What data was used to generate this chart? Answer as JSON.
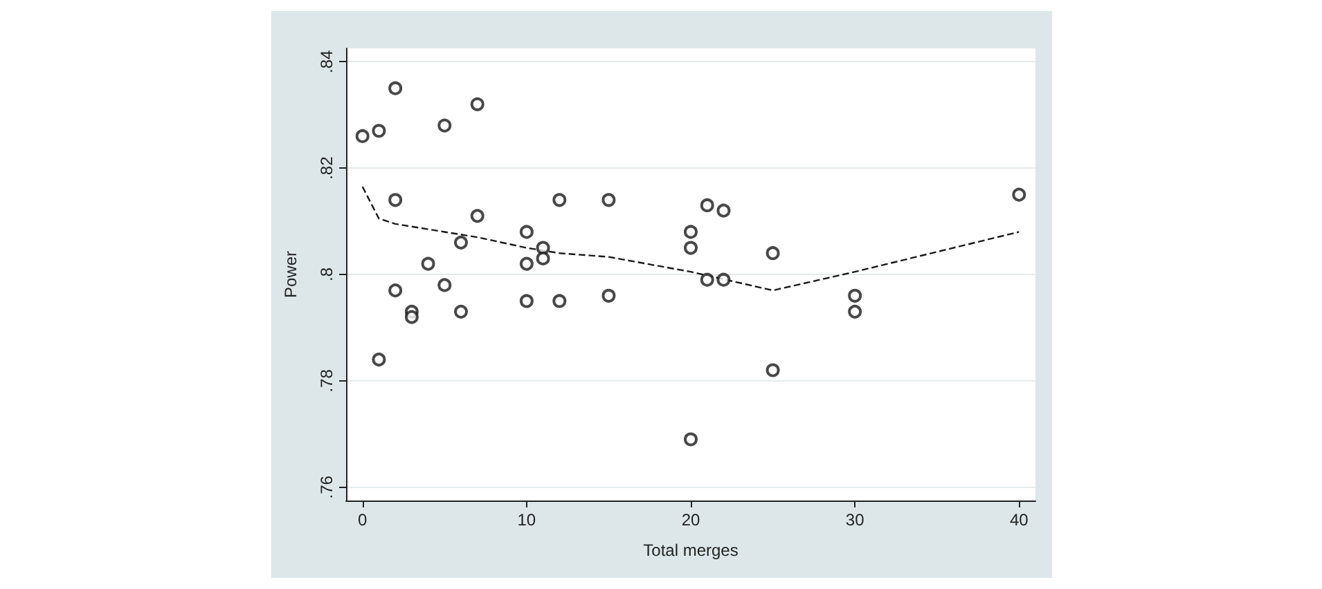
{
  "chart_data": {
    "type": "scatter",
    "xlabel": "Total merges",
    "ylabel": "Power",
    "xlim": [
      -1,
      41
    ],
    "xticks": [
      0,
      10,
      20,
      30,
      40
    ],
    "ylim": [
      0.7575,
      0.8425
    ],
    "yticks": [
      {
        "value": 0.76,
        "label": ".76"
      },
      {
        "value": 0.78,
        "label": ".78"
      },
      {
        "value": 0.8,
        "label": ".8"
      },
      {
        "value": 0.82,
        "label": ".82"
      },
      {
        "value": 0.84,
        "label": ".84"
      }
    ],
    "grid": "y",
    "series": [
      {
        "color": "#1a1a1a",
        "marker": "circle",
        "x": [
          0,
          1,
          1,
          2,
          2,
          2,
          3,
          3,
          4,
          5,
          5,
          6,
          6,
          7,
          7,
          10,
          10,
          10,
          11,
          11,
          12,
          12,
          15,
          15,
          20,
          20,
          20,
          21,
          21,
          22,
          22,
          25,
          25,
          30,
          30,
          40
        ],
        "values": [
          0.826,
          0.827,
          0.784,
          0.835,
          0.814,
          0.797,
          0.793,
          0.792,
          0.802,
          0.828,
          0.798,
          0.806,
          0.793,
          0.832,
          0.811,
          0.808,
          0.802,
          0.795,
          0.805,
          0.803,
          0.814,
          0.795,
          0.814,
          0.796,
          0.808,
          0.805,
          0.769,
          0.813,
          0.799,
          0.812,
          0.799,
          0.804,
          0.782,
          0.796,
          0.793,
          0.815
        ]
      },
      {
        "type": "line",
        "color": "#1a1a1a",
        "marker": "none",
        "line_style": "dashed",
        "x": [
          0,
          1,
          2,
          5,
          7,
          10,
          12,
          15,
          20,
          25,
          30,
          40
        ],
        "values": [
          0.8165,
          0.8105,
          0.8095,
          0.808,
          0.807,
          0.805,
          0.804,
          0.8033,
          0.8005,
          0.797,
          0.8005,
          0.808
        ]
      }
    ]
  }
}
